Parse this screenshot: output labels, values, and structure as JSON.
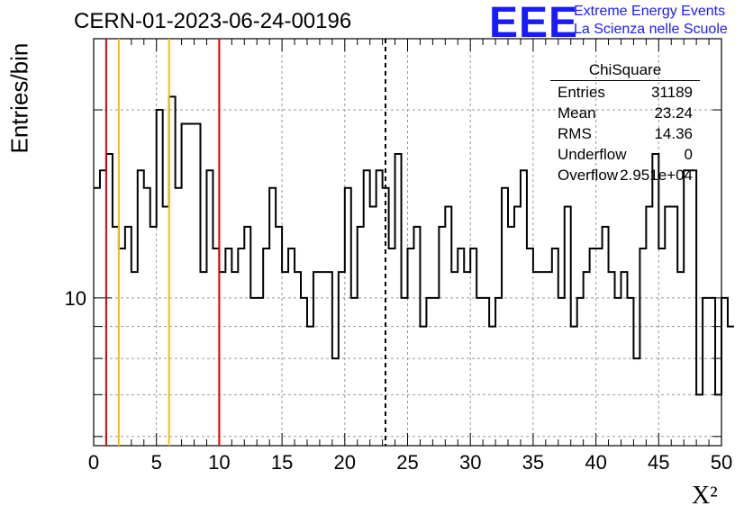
{
  "title": "CERN-01-2023-06-24-00196",
  "logo": {
    "mark": "EEE",
    "line1": "Extreme Energy Events",
    "line2": "La Scienza nelle Scuole"
  },
  "stats": {
    "title": "ChiSquare",
    "rows": [
      {
        "key": "Entries",
        "value": "31189"
      },
      {
        "key": "Mean",
        "value": "23.24"
      },
      {
        "key": "RMS",
        "value": "14.36"
      },
      {
        "key": "Underflow",
        "value": "0"
      },
      {
        "key": "Overflow",
        "value": "2.951e+04"
      }
    ]
  },
  "colors": {
    "red_lines": "#dd0000",
    "yellow_lines": "#f5c000",
    "histogram": "#000000",
    "logo": "#1a1aff"
  },
  "chart_data": {
    "type": "histogram",
    "xlabel": "X²",
    "ylabel": "Entries/bin",
    "xlim": [
      0,
      50
    ],
    "ylog": true,
    "ylim": [
      5.8,
      26
    ],
    "grid": true,
    "x_ticks": [
      0,
      5,
      10,
      15,
      20,
      25,
      30,
      35,
      40,
      45,
      50
    ],
    "y_tick_labels": [
      {
        "value": 10,
        "label": "10"
      }
    ],
    "bin_width": 0.5,
    "values": [
      15,
      16,
      17,
      13,
      12,
      13,
      11,
      16,
      15,
      13,
      20,
      14,
      21,
      15,
      19,
      19,
      19,
      11,
      16,
      12,
      11,
      12,
      11,
      12,
      13,
      10,
      10,
      12,
      15,
      13,
      11,
      12,
      11,
      10,
      9,
      11,
      11,
      11,
      8,
      11,
      15,
      10,
      13,
      16,
      14,
      16,
      15,
      12,
      17,
      10,
      12,
      13,
      9,
      10,
      10,
      13,
      14,
      11,
      12,
      11,
      12,
      10,
      10,
      9,
      10,
      15,
      13,
      14,
      16,
      12,
      11,
      11,
      11,
      12,
      10,
      14,
      9,
      10,
      11,
      12,
      12,
      13,
      11,
      10,
      11,
      10,
      8,
      12,
      14,
      17,
      12,
      14,
      14,
      11,
      16,
      16,
      7,
      10,
      10,
      7,
      10,
      9
    ],
    "vertical_lines": [
      {
        "x": 1,
        "color": "red",
        "style": "solid"
      },
      {
        "x": 2,
        "color": "yellow",
        "style": "solid"
      },
      {
        "x": 6,
        "color": "yellow",
        "style": "solid"
      },
      {
        "x": 10,
        "color": "red",
        "style": "solid"
      },
      {
        "x": 23.24,
        "color": "black",
        "style": "dashed"
      }
    ]
  }
}
